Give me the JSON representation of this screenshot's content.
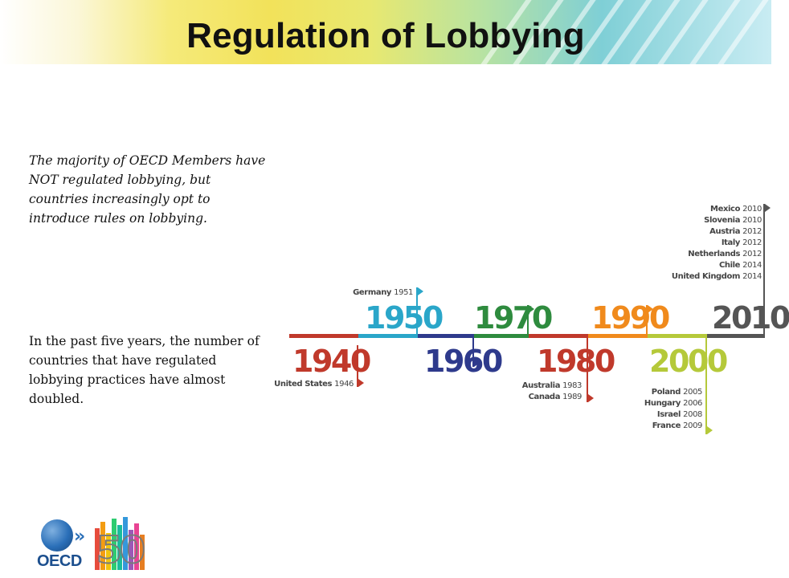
{
  "slide": {
    "title": "Regulation of Lobbying",
    "paragraph_1": "The majority of OECD Members have NOT regulated lobbying, but countries increasingly opt to introduce rules on lobbying.",
    "paragraph_2": "In the past five years, the number of countries that have regulated lobbying practices have almost doubled."
  },
  "timeline": {
    "decades": [
      {
        "label": "1940",
        "color": "#c0392b",
        "countries": [
          {
            "name": "United States",
            "year": "1946"
          }
        ]
      },
      {
        "label": "1950",
        "color": "#2aa6c9",
        "countries": [
          {
            "name": "Germany",
            "year": "1951"
          }
        ]
      },
      {
        "label": "1960",
        "color": "#2e3a8c",
        "countries": []
      },
      {
        "label": "1970",
        "color": "#2e8b3e",
        "countries": []
      },
      {
        "label": "1980",
        "color": "#c0392b",
        "countries": [
          {
            "name": "Australia",
            "year": "1983"
          },
          {
            "name": "Canada",
            "year": "1989"
          }
        ]
      },
      {
        "label": "1990",
        "color": "#f08a1c",
        "countries": []
      },
      {
        "label": "2000",
        "color": "#b5c93a",
        "countries": [
          {
            "name": "Poland",
            "year": "2005"
          },
          {
            "name": "Hungary",
            "year": "2006"
          },
          {
            "name": "Israel",
            "year": "2008"
          },
          {
            "name": "France",
            "year": "2009"
          }
        ]
      },
      {
        "label": "2010",
        "color": "#555555",
        "countries": [
          {
            "name": "Mexico",
            "year": "2010"
          },
          {
            "name": "Slovenia",
            "year": "2010"
          },
          {
            "name": "Austria",
            "year": "2012"
          },
          {
            "name": "Italy",
            "year": "2012"
          },
          {
            "name": "Netherlands",
            "year": "2012"
          },
          {
            "name": "Chile",
            "year": "2014"
          },
          {
            "name": "United Kingdom",
            "year": "2014"
          }
        ]
      }
    ]
  },
  "logo": {
    "organisation": "OECD",
    "anniversary": "50"
  }
}
